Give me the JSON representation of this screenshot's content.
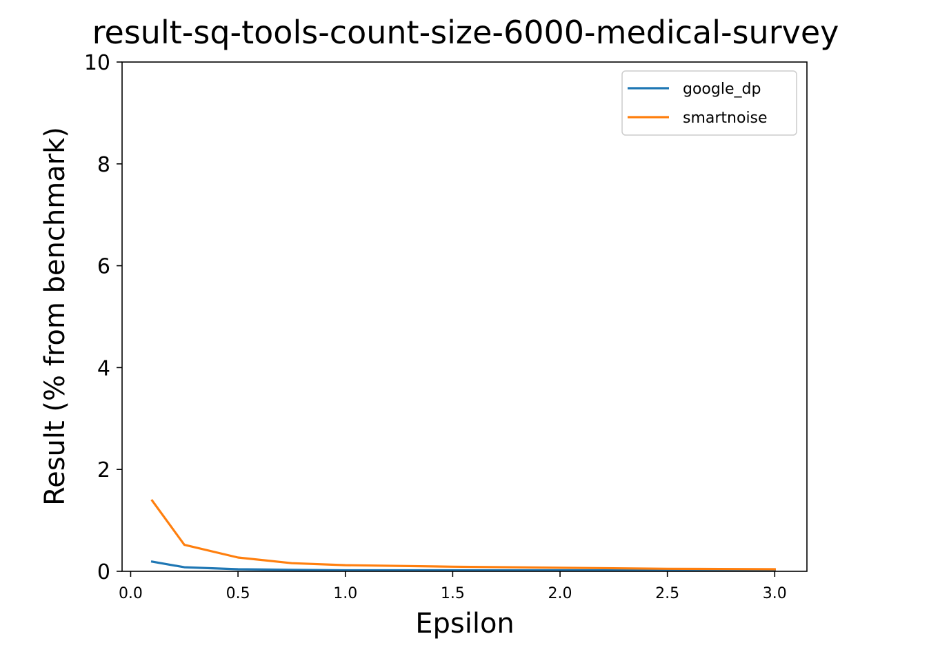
{
  "chart_data": {
    "type": "line",
    "title": "result-sq-tools-count-size-6000-medical-survey",
    "xlabel": "Epsilon",
    "ylabel": "Result (% from benchmark)",
    "xlim": [
      -0.04,
      3.15
    ],
    "ylim": [
      0,
      10
    ],
    "xticks": [
      0.0,
      0.5,
      1.0,
      1.5,
      2.0,
      2.5,
      3.0
    ],
    "xtick_labels": [
      "0.0",
      "0.5",
      "1.0",
      "1.5",
      "2.0",
      "2.5",
      "3.0"
    ],
    "yticks": [
      0,
      2,
      4,
      6,
      8,
      10
    ],
    "ytick_labels": [
      "0",
      "2",
      "4",
      "6",
      "8",
      "10"
    ],
    "grid": false,
    "legend_position": "top-right",
    "series": [
      {
        "name": "google_dp",
        "color": "#1f77b4",
        "x": [
          0.1,
          0.25,
          0.5,
          0.75,
          1.0,
          1.5,
          2.0,
          2.5,
          3.0
        ],
        "y": [
          0.19,
          0.08,
          0.04,
          0.03,
          0.02,
          0.02,
          0.02,
          0.02,
          0.02
        ]
      },
      {
        "name": "smartnoise",
        "color": "#ff7f0e",
        "x": [
          0.1,
          0.25,
          0.5,
          0.75,
          1.0,
          1.5,
          2.0,
          2.5,
          3.0
        ],
        "y": [
          1.39,
          0.52,
          0.27,
          0.16,
          0.12,
          0.09,
          0.07,
          0.05,
          0.04
        ]
      }
    ]
  }
}
